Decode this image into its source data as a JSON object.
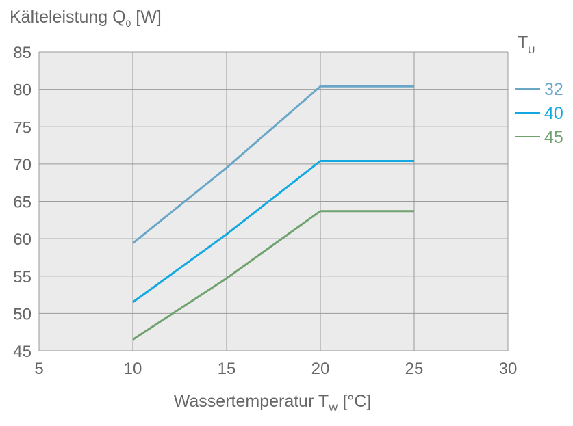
{
  "chart_data": {
    "type": "line",
    "title": "Kälteleistung Q",
    "title_sub": "0",
    "title_unit": " [W]",
    "xlabel": "Wassertemperatur T",
    "xlabel_sub": "W",
    "xlabel_unit": " [°C]",
    "legend_title": "T",
    "legend_title_sub": "U",
    "legend_placement": "right",
    "xlim": [
      5,
      30
    ],
    "ylim": [
      45,
      85
    ],
    "x_ticks": [
      "5",
      "10",
      "15",
      "20",
      "25",
      "30"
    ],
    "y_ticks": [
      "45",
      "50",
      "55",
      "60",
      "65",
      "70",
      "75",
      "80",
      "85"
    ],
    "grid": true,
    "x": [
      10,
      15,
      20,
      25
    ],
    "series": [
      {
        "name": "32",
        "values": [
          59.4,
          69.5,
          80.4,
          80.4
        ],
        "color": "#6aa6c8"
      },
      {
        "name": "40",
        "values": [
          51.5,
          60.6,
          70.4,
          70.4
        ],
        "color": "#12a8e0"
      },
      {
        "name": "45",
        "values": [
          46.5,
          54.7,
          63.7,
          63.7
        ],
        "color": "#6fa26e"
      }
    ]
  }
}
